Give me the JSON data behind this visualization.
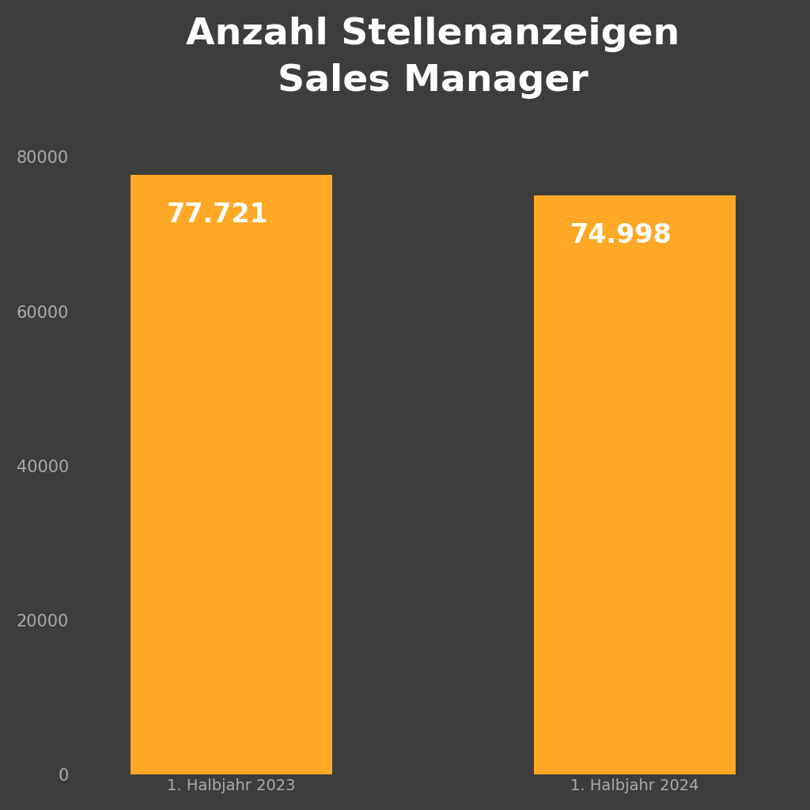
{
  "title_line1": "Anzahl Stellenanzeigen",
  "title_line2": "Sales Manager",
  "categories": [
    "1. Halbjahr 2023",
    "1. Halbjahr 2024"
  ],
  "values": [
    77721,
    74998
  ],
  "labels": [
    "77.721",
    "74.998"
  ],
  "bar_color": "#FFA826",
  "background_color": "#3d3d3d",
  "text_color": "#ffffff",
  "tick_color": "#aaaaaa",
  "ylim": [
    0,
    85000
  ],
  "yticks": [
    0,
    20000,
    40000,
    60000,
    80000
  ],
  "title_fontsize": 34,
  "label_fontsize": 24,
  "tick_fontsize": 15,
  "xtick_fontsize": 14,
  "bar_width": 0.28,
  "bar_positions": [
    0.22,
    0.78
  ],
  "xlim": [
    0,
    1
  ]
}
